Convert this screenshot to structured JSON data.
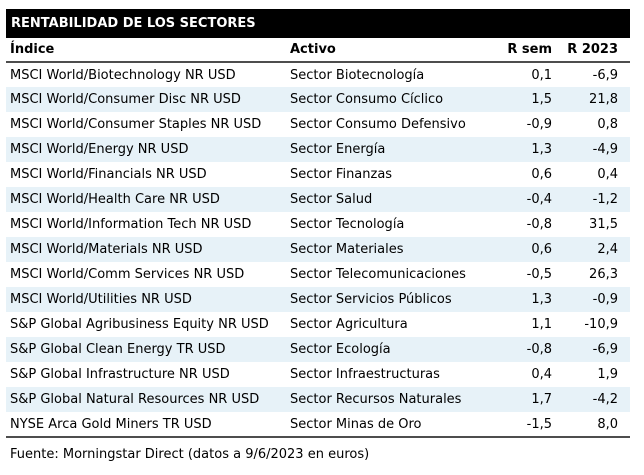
{
  "title": "RENTABILIDAD DE LOS SECTORES",
  "columns": {
    "indice": "Índice",
    "activo": "Activo",
    "r_sem": "R sem",
    "r_2023": "R 2023"
  },
  "rows": [
    {
      "indice": "MSCI World/Biotechnology NR USD",
      "activo": "Sector Biotecnología",
      "r_sem": "0,1",
      "r_2023": "-6,9"
    },
    {
      "indice": "MSCI World/Consumer Disc NR USD",
      "activo": "Sector Consumo Cíclico",
      "r_sem": "1,5",
      "r_2023": "21,8"
    },
    {
      "indice": "MSCI World/Consumer Staples NR USD",
      "activo": "Sector Consumo Defensivo",
      "r_sem": "-0,9",
      "r_2023": "0,8"
    },
    {
      "indice": "MSCI World/Energy NR USD",
      "activo": "Sector Energía",
      "r_sem": "1,3",
      "r_2023": "-4,9"
    },
    {
      "indice": "MSCI World/Financials NR USD",
      "activo": "Sector Finanzas",
      "r_sem": "0,6",
      "r_2023": "0,4"
    },
    {
      "indice": "MSCI World/Health Care NR USD",
      "activo": "Sector Salud",
      "r_sem": "-0,4",
      "r_2023": "-1,2"
    },
    {
      "indice": "MSCI World/Information Tech NR USD",
      "activo": "Sector Tecnología",
      "r_sem": "-0,8",
      "r_2023": "31,5"
    },
    {
      "indice": "MSCI World/Materials NR USD",
      "activo": "Sector Materiales",
      "r_sem": "0,6",
      "r_2023": "2,4"
    },
    {
      "indice": "MSCI World/Comm Services NR USD",
      "activo": "Sector Telecomunicaciones",
      "r_sem": "-0,5",
      "r_2023": "26,3"
    },
    {
      "indice": "MSCI World/Utilities NR USD",
      "activo": "Sector Servicios Públicos",
      "r_sem": "1,3",
      "r_2023": "-0,9"
    },
    {
      "indice": "S&P Global Agribusiness Equity NR USD",
      "activo": "Sector Agricultura",
      "r_sem": "1,1",
      "r_2023": "-10,9"
    },
    {
      "indice": "S&P Global Clean Energy TR USD",
      "activo": "Sector Ecología",
      "r_sem": "-0,8",
      "r_2023": "-6,9"
    },
    {
      "indice": "S&P Global Infrastructure NR USD",
      "activo": "Sector Infraestructuras",
      "r_sem": "0,4",
      "r_2023": "1,9"
    },
    {
      "indice": "S&P Global Natural Resources NR USD",
      "activo": "Sector Recursos Naturales",
      "r_sem": "1,7",
      "r_2023": "-4,2"
    },
    {
      "indice": "NYSE Arca Gold Miners TR USD",
      "activo": "Sector Minas de Oro",
      "r_sem": "-1,5",
      "r_2023": "8,0"
    }
  ],
  "footer": {
    "text": "Fuente: Morningstar Direct (datos a 9/6/2023 en euros)"
  },
  "colors": {
    "header_bg": "#000000",
    "header_text": "#ffffff",
    "alt_row_bg": "#e7f2f8",
    "rule": "#4d4d4d"
  }
}
